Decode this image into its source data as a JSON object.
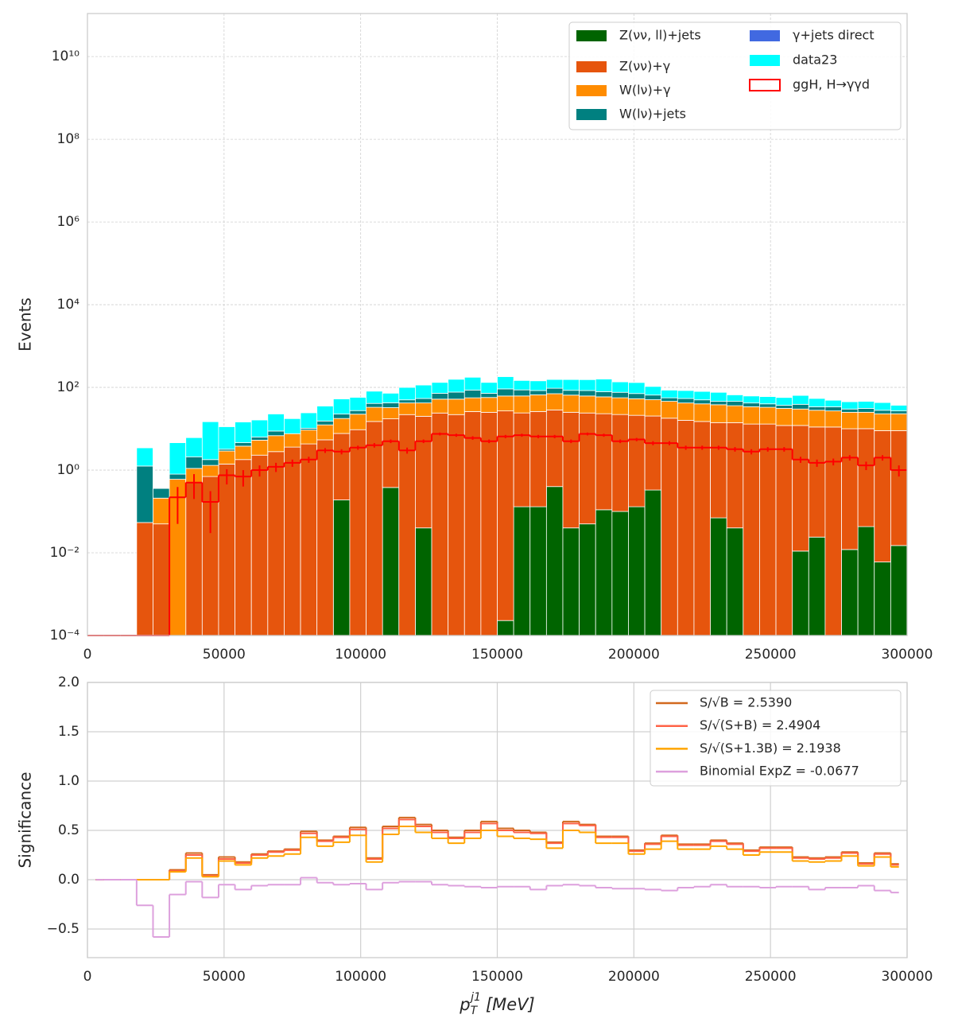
{
  "chart_data": [
    {
      "type": "histogram",
      "y_label": "Events",
      "log_y": true,
      "stacked": true,
      "grid": true,
      "legend": "upper right",
      "legend_columns": 2,
      "xlim": [
        0,
        300000
      ],
      "xticks": [
        0,
        50000,
        100000,
        150000,
        200000,
        250000,
        300000
      ],
      "ylim": [
        0.0001,
        110000000000
      ],
      "yticks": [
        {
          "value": 0.0001,
          "label": "10⁻⁴"
        },
        {
          "value": 0.01,
          "label": "10⁻²"
        },
        {
          "value": 1,
          "label": "10⁰"
        },
        {
          "value": 100,
          "label": "10²"
        },
        {
          "value": 10000,
          "label": "10⁴"
        },
        {
          "value": 1000000,
          "label": "10⁶"
        },
        {
          "value": 100000000,
          "label": "10⁸"
        },
        {
          "value": 10000000000,
          "label": "10¹⁰"
        }
      ],
      "bins": [
        0,
        6000,
        12000,
        18000,
        24000,
        30000,
        36000,
        42000,
        48000,
        54000,
        60000,
        66000,
        72000,
        78000,
        84000,
        90000,
        96000,
        102000,
        108000,
        114000,
        120000,
        126000,
        132000,
        138000,
        144000,
        150000,
        156000,
        162000,
        168000,
        174000,
        180000,
        186000,
        192000,
        198000,
        204000,
        210000,
        216000,
        222000,
        228000,
        234000,
        240000,
        246000,
        252000,
        258000,
        264000,
        270000,
        276000,
        282000,
        288000,
        294000,
        300000
      ],
      "series": [
        {
          "name": "Z(νν, ll)+jets",
          "color": "#006400",
          "values": [
            0,
            0,
            0,
            0,
            0,
            0,
            0,
            0,
            0,
            0,
            0,
            0,
            0,
            0,
            0,
            0.19,
            0,
            0,
            0.38,
            0,
            0.04,
            0,
            0,
            0,
            0,
            0.00023,
            0.13,
            0.13,
            0.4,
            0.04,
            0.05,
            0.11,
            0.1,
            0.13,
            0.33,
            0,
            0,
            0,
            0.07,
            0.04,
            0,
            0,
            0,
            0.011,
            0.024,
            0,
            0.012,
            0.043,
            0.006,
            0.015
          ]
        },
        {
          "name": "Z(νν)+γ",
          "color": "#e6550d",
          "values": [
            0,
            0,
            0,
            0.054,
            0.05,
            0,
            0.5,
            0.7,
            1.4,
            1.8,
            2.3,
            2.8,
            3.6,
            4.3,
            5.4,
            7.5,
            9.5,
            15,
            17,
            22,
            20,
            24,
            22,
            26,
            25,
            27,
            24,
            26,
            28,
            25,
            24,
            23,
            22,
            21,
            20,
            18,
            16,
            15,
            14,
            14,
            13,
            13,
            12,
            12,
            11,
            11,
            10,
            10,
            9,
            9
          ]
        },
        {
          "name": "W(lν)+γ",
          "color": "#ff8c00",
          "values": [
            0,
            0,
            0,
            0,
            0.16,
            0.6,
            0.6,
            0.6,
            1.5,
            2,
            3,
            4,
            4,
            5,
            7,
            10,
            13,
            18,
            15,
            20,
            22,
            28,
            30,
            30,
            32,
            35,
            38,
            40,
            42,
            40,
            38,
            36,
            34,
            32,
            30,
            28,
            26,
            25,
            24,
            22,
            21,
            20,
            19,
            18,
            17,
            16,
            15,
            15,
            14,
            14
          ]
        },
        {
          "name": "W(lν)+jets",
          "color": "#008080",
          "values": [
            0,
            0,
            0,
            1.2,
            0.15,
            0.2,
            1.0,
            0.5,
            0.3,
            0.8,
            1,
            2,
            0,
            1,
            3,
            5,
            5,
            8,
            10,
            8,
            12,
            20,
            25,
            30,
            15,
            30,
            25,
            18,
            25,
            20,
            22,
            20,
            20,
            18,
            15,
            10,
            12,
            10,
            8,
            10,
            8,
            7,
            6,
            9,
            6,
            7,
            5,
            6,
            5,
            4
          ]
        },
        {
          "name": "γ+jets direct",
          "color": "#4169e1",
          "values": [
            0,
            0,
            0,
            0,
            0,
            0,
            0,
            0,
            0,
            0,
            0,
            0,
            0,
            0,
            0,
            0,
            0,
            0,
            0,
            0,
            0,
            0,
            0,
            0,
            0,
            0,
            0,
            0,
            0,
            0,
            0,
            0,
            0,
            0,
            0,
            0,
            0,
            0,
            0,
            0,
            0,
            0,
            0,
            0,
            0,
            0,
            0,
            0,
            0,
            0
          ]
        },
        {
          "name": "data23",
          "color": "#00ffff",
          "values": [
            0,
            0,
            0,
            2.2,
            0,
            3.8,
            4,
            13,
            8,
            10,
            10,
            14,
            10,
            14,
            20,
            30,
            30,
            40,
            30,
            50,
            60,
            60,
            80,
            90,
            60,
            90,
            60,
            60,
            60,
            70,
            70,
            80,
            60,
            60,
            40,
            30,
            30,
            30,
            30,
            20,
            20,
            20,
            20,
            25,
            20,
            15,
            15,
            15,
            15,
            10
          ]
        }
      ],
      "overlay": {
        "name": "ggH, H→γγd",
        "color": "#ff0000",
        "values": [
          0,
          0,
          0,
          0,
          0,
          0.22,
          0.5,
          0.17,
          0.75,
          0.7,
          1.0,
          1.2,
          1.5,
          1.8,
          3,
          2.8,
          3.5,
          4,
          5,
          3,
          5,
          7.5,
          7,
          6,
          5,
          6.5,
          7,
          6.5,
          6.5,
          5,
          7.5,
          7,
          5,
          5.5,
          4.5,
          4.5,
          3.5,
          3.5,
          3.5,
          3.2,
          2.8,
          3.2,
          3.2,
          1.8,
          1.5,
          1.6,
          2,
          1.3,
          2,
          1
        ],
        "errors": [
          0,
          0,
          0,
          0,
          0,
          0.17,
          0.3,
          0.14,
          0.3,
          0.3,
          0.3,
          0.3,
          0.3,
          0.3,
          0.4,
          0.4,
          0.4,
          0.5,
          0.5,
          0.5,
          0.5,
          0.6,
          0.6,
          0.6,
          0.5,
          0.6,
          0.6,
          0.6,
          0.6,
          0.5,
          0.6,
          0.6,
          0.5,
          0.5,
          0.5,
          0.5,
          0.4,
          0.4,
          0.4,
          0.4,
          0.4,
          0.4,
          0.4,
          0.3,
          0.3,
          0.3,
          0.3,
          0.3,
          0.3,
          0.3
        ]
      }
    },
    {
      "type": "line",
      "y_label": "Significance",
      "grid": true,
      "legend": "upper right",
      "legend_text_color": "#800080",
      "x_label": {
        "symbol": "p",
        "subscript": "T",
        "superscript": "j1",
        "unit": "[MeV]"
      },
      "xlim": [
        0,
        300000
      ],
      "xticks": [
        0,
        50000,
        100000,
        150000,
        200000,
        250000,
        300000
      ],
      "ylim": [
        -0.79,
        2.0
      ],
      "yticks": [
        {
          "value": -0.5,
          "label": "−0.5"
        },
        {
          "value": 0,
          "label": "0.0"
        },
        {
          "value": 0.5,
          "label": "0.5"
        },
        {
          "value": 1,
          "label": "1.0"
        },
        {
          "value": 1.5,
          "label": "1.5"
        },
        {
          "value": 2,
          "label": "2.0"
        }
      ],
      "x": [
        3000,
        9000,
        15000,
        21000,
        27000,
        33000,
        39000,
        45000,
        51000,
        57000,
        63000,
        69000,
        75000,
        81000,
        87000,
        93000,
        99000,
        105000,
        111000,
        117000,
        123000,
        129000,
        135000,
        141000,
        147000,
        153000,
        159000,
        165000,
        171000,
        177000,
        183000,
        189000,
        195000,
        201000,
        207000,
        213000,
        219000,
        225000,
        231000,
        237000,
        243000,
        249000,
        255000,
        261000,
        267000,
        273000,
        279000,
        285000,
        291000,
        297000
      ],
      "series": [
        {
          "name": "S/√B = 2.5390",
          "color": "#d2691e",
          "values": [
            0,
            0,
            0,
            0,
            0,
            0.1,
            0.27,
            0.05,
            0.23,
            0.18,
            0.26,
            0.29,
            0.31,
            0.49,
            0.4,
            0.44,
            0.53,
            0.22,
            0.54,
            0.63,
            0.56,
            0.5,
            0.43,
            0.5,
            0.59,
            0.52,
            0.5,
            0.48,
            0.38,
            0.59,
            0.56,
            0.44,
            0.44,
            0.3,
            0.37,
            0.45,
            0.36,
            0.36,
            0.4,
            0.37,
            0.3,
            0.33,
            0.33,
            0.23,
            0.22,
            0.23,
            0.28,
            0.17,
            0.27,
            0.16
          ]
        },
        {
          "name": "S/√(S+B) = 2.4904",
          "color": "#ff6347",
          "values": [
            0,
            0,
            0,
            0,
            0,
            0.09,
            0.25,
            0.04,
            0.21,
            0.17,
            0.25,
            0.28,
            0.3,
            0.47,
            0.39,
            0.43,
            0.51,
            0.21,
            0.52,
            0.61,
            0.54,
            0.48,
            0.42,
            0.48,
            0.57,
            0.5,
            0.48,
            0.47,
            0.37,
            0.57,
            0.55,
            0.43,
            0.43,
            0.29,
            0.36,
            0.44,
            0.35,
            0.35,
            0.39,
            0.36,
            0.29,
            0.32,
            0.32,
            0.22,
            0.21,
            0.22,
            0.27,
            0.16,
            0.26,
            0.15
          ]
        },
        {
          "name": "S/√(S+1.3B) = 2.1938",
          "color": "#ffa500",
          "values": [
            0,
            0,
            0,
            0,
            0,
            0.08,
            0.22,
            0.03,
            0.19,
            0.15,
            0.22,
            0.24,
            0.26,
            0.43,
            0.34,
            0.38,
            0.45,
            0.18,
            0.46,
            0.54,
            0.48,
            0.42,
            0.37,
            0.42,
            0.5,
            0.44,
            0.42,
            0.41,
            0.32,
            0.5,
            0.48,
            0.37,
            0.37,
            0.26,
            0.31,
            0.39,
            0.31,
            0.31,
            0.34,
            0.31,
            0.25,
            0.28,
            0.28,
            0.19,
            0.18,
            0.19,
            0.24,
            0.14,
            0.23,
            0.13
          ]
        },
        {
          "name": "Binomial ExpZ = -0.0677",
          "color": "#dda0dd",
          "values": [
            0,
            0,
            0,
            -0.26,
            -0.58,
            -0.15,
            -0.02,
            -0.18,
            -0.05,
            -0.1,
            -0.06,
            -0.05,
            -0.05,
            0.02,
            -0.03,
            -0.05,
            -0.04,
            -0.1,
            -0.03,
            -0.02,
            -0.02,
            -0.05,
            -0.06,
            -0.07,
            -0.08,
            -0.07,
            -0.07,
            -0.1,
            -0.06,
            -0.05,
            -0.06,
            -0.08,
            -0.09,
            -0.09,
            -0.1,
            -0.11,
            -0.08,
            -0.07,
            -0.05,
            -0.07,
            -0.07,
            -0.08,
            -0.07,
            -0.07,
            -0.1,
            -0.08,
            -0.08,
            -0.06,
            -0.11,
            -0.13
          ]
        }
      ]
    }
  ]
}
